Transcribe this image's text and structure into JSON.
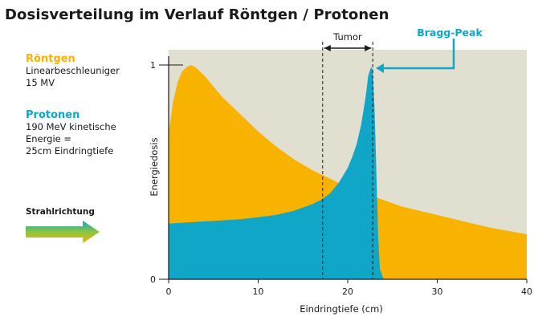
{
  "title": "Dosisverteilung im Verlauf Röntgen / Protonen",
  "legend": {
    "xray": {
      "heading": "Röntgen",
      "lines": [
        "Linearbeschleuniger",
        "15 MV"
      ]
    },
    "proton": {
      "heading": "Protonen",
      "lines": [
        "190 MeV kinetische",
        "Energie =",
        "25cm Eindringtiefe"
      ]
    },
    "direction_label": "Strahlrichtung"
  },
  "colors": {
    "xray": "#f7b300",
    "proton": "#10a6c8",
    "background": "#e0dfd0",
    "arrow_gradient": [
      "#10a6c8",
      "#8cc63f",
      "#f7b300"
    ]
  },
  "chart_data": {
    "type": "area",
    "title": "Dosisverteilung im Verlauf Röntgen / Protonen",
    "xlabel": "Eindringtiefe (cm)",
    "ylabel": "Energiedosis",
    "xlim": [
      0,
      40
    ],
    "ylim": [
      0,
      1
    ],
    "xticks": [
      0,
      10,
      20,
      30,
      40
    ],
    "yticks": [
      0,
      1
    ],
    "grid": false,
    "series": [
      {
        "name": "Röntgen",
        "x": [
          0,
          0.5,
          1,
          1.5,
          2,
          2.5,
          3,
          4,
          5,
          6,
          7,
          8,
          9,
          10,
          12,
          14,
          16,
          18,
          20,
          22,
          24,
          26,
          28,
          30,
          32,
          34,
          36,
          38,
          40
        ],
        "y": [
          0.68,
          0.83,
          0.92,
          0.97,
          0.99,
          1.0,
          0.99,
          0.95,
          0.9,
          0.85,
          0.81,
          0.77,
          0.73,
          0.69,
          0.62,
          0.56,
          0.51,
          0.47,
          0.43,
          0.4,
          0.37,
          0.34,
          0.32,
          0.3,
          0.28,
          0.26,
          0.24,
          0.225,
          0.21
        ]
      },
      {
        "name": "Protonen",
        "x": [
          0,
          2,
          4,
          6,
          8,
          10,
          12,
          14,
          16,
          17,
          18,
          19,
          20,
          20.5,
          21,
          21.5,
          22,
          22.3,
          22.6,
          22.8,
          23,
          23.2,
          23.4,
          23.6,
          24
        ],
        "y": [
          0.26,
          0.265,
          0.27,
          0.275,
          0.28,
          0.29,
          0.3,
          0.32,
          0.35,
          0.37,
          0.4,
          0.45,
          0.52,
          0.57,
          0.63,
          0.72,
          0.85,
          0.95,
          0.99,
          0.98,
          0.8,
          0.5,
          0.2,
          0.05,
          0
        ]
      }
    ],
    "annotations": [
      {
        "text": "Tumor",
        "x_range": [
          17.2,
          22.8
        ]
      },
      {
        "text": "Bragg-Peak",
        "x": 22.6,
        "y": 0.99
      }
    ]
  }
}
